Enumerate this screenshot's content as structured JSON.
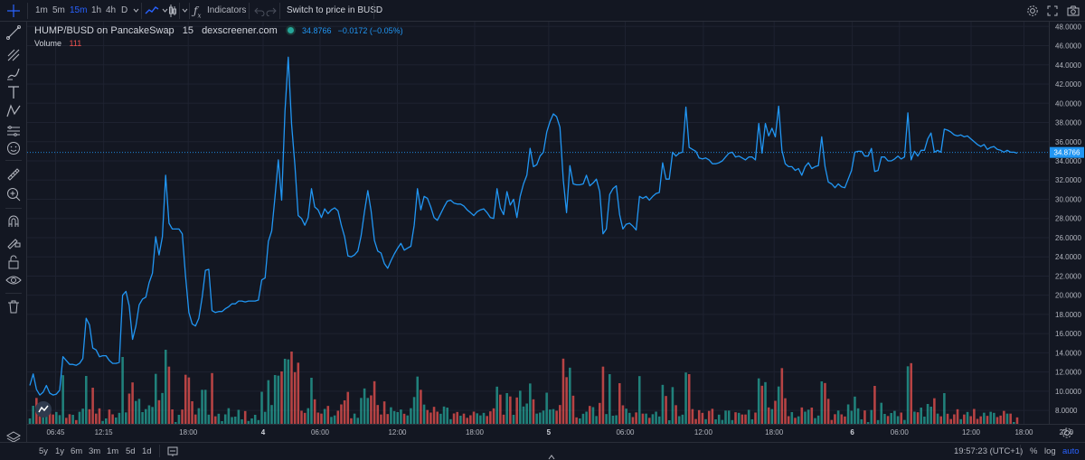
{
  "toolbar": {
    "intervals": [
      {
        "label": "1m",
        "active": false
      },
      {
        "label": "5m",
        "active": false
      },
      {
        "label": "15m",
        "active": true
      },
      {
        "label": "1h",
        "active": false
      },
      {
        "label": "4h",
        "active": false
      },
      {
        "label": "D",
        "active": false
      }
    ],
    "indicators_label": "Indicators",
    "switch_label": "Switch to price in BUSD"
  },
  "legend": {
    "symbol": "HUMP/BUSD on PancakeSwap",
    "interval": "15",
    "source": "dexscreener.com",
    "price": "34.8766",
    "change": "−0.0172 (−0.05%)",
    "volume_label": "Volume",
    "volume_value": "111"
  },
  "colors": {
    "line": "#2196f3",
    "up": "#26a69a",
    "down": "#ef5350",
    "background": "#131722",
    "grid": "#1e2230",
    "price_badge": "#2196f3"
  },
  "bottombar": {
    "ranges": [
      "5y",
      "1y",
      "6m",
      "3m",
      "1m",
      "5d",
      "1d"
    ],
    "time": "19:57:23 (UTC+1)",
    "percent_label": "%",
    "log_label": "log",
    "auto_label": "auto"
  },
  "chart_data": {
    "type": "line",
    "y_ticks": [
      "48.0000",
      "46.0000",
      "44.0000",
      "42.0000",
      "40.0000",
      "38.0000",
      "36.0000",
      "34.0000",
      "32.0000",
      "30.0000",
      "28.0000",
      "26.0000",
      "24.0000",
      "22.0000",
      "20.0000",
      "18.0000",
      "16.0000",
      "14.0000",
      "12.0000",
      "10.0000",
      "8.0000"
    ],
    "ylim": [
      6.6,
      48.5
    ],
    "current_price_label": "34.8766",
    "current_price": 34.8766,
    "x_ticks": [
      {
        "label": "06:45",
        "pos": 0.035
      },
      {
        "label": "12:15",
        "pos": 0.094
      },
      {
        "label": "18:00",
        "pos": 0.198
      },
      {
        "label": "4",
        "pos": 0.29
      },
      {
        "label": "06:00",
        "pos": 0.36
      },
      {
        "label": "12:00",
        "pos": 0.455
      },
      {
        "label": "18:00",
        "pos": 0.55
      },
      {
        "label": "5",
        "pos": 0.641
      },
      {
        "label": "06:00",
        "pos": 0.735
      },
      {
        "label": "12:00",
        "pos": 0.831
      },
      {
        "label": "18:00",
        "pos": 0.918
      },
      {
        "label": "6",
        "pos": 1.014
      },
      {
        "label": "06:00",
        "pos": 1.072
      },
      {
        "label": "12:00",
        "pos": 1.16
      },
      {
        "label": "18:00",
        "pos": 1.225
      },
      {
        "label": "22:0",
        "pos": 1.277
      }
    ],
    "series": [
      {
        "values": [
          10.6,
          11.8,
          10.2,
          9.6,
          9.9,
          10.6,
          9.8,
          9.6,
          9.7,
          10.1,
          13.6,
          13.2,
          12.8,
          12.8,
          12.7,
          12.9,
          13.4,
          17.6,
          16.9,
          14.5,
          14.3,
          13.6,
          13.7,
          13.7,
          13.2,
          12.9,
          12.9,
          13.0,
          20.0,
          20.4,
          18.9,
          15.4,
          16.8,
          19.0,
          19.6,
          19.8,
          21.3,
          22.3,
          26.1,
          24.2,
          26.1,
          32.5,
          27.5,
          26.9,
          26.9,
          26.9,
          26.4,
          22.0,
          18.2,
          17.0,
          16.8,
          17.6,
          19.8,
          22.6,
          22.7,
          18.4,
          18.2,
          18.3,
          18.3,
          18.6,
          18.8,
          19.1,
          19.1,
          19.4,
          19.4,
          19.3,
          19.4,
          19.4,
          19.4,
          19.5,
          21.6,
          21.8,
          25.6,
          26.7,
          30.3,
          34.1,
          29.9,
          39.2,
          44.8,
          37.8,
          33.5,
          28.3,
          28.0,
          27.3,
          28.1,
          31.1,
          29.2,
          28.9,
          28.1,
          29.0,
          28.5,
          28.9,
          29.1,
          28.8,
          27.3,
          26.1,
          24.1,
          24.0,
          24.2,
          24.6,
          26.2,
          28.7,
          30.9,
          28.8,
          25.7,
          24.6,
          24.4,
          23.3,
          22.8,
          23.6,
          24.3,
          24.9,
          25.4,
          24.7,
          24.9,
          25.1,
          27.3,
          31.1,
          28.9,
          30.3,
          30.1,
          29.2,
          28.1,
          27.8,
          28.5,
          29.2,
          29.8,
          29.9,
          29.6,
          29.5,
          29.5,
          29.3,
          28.9,
          28.6,
          28.3,
          28.7,
          28.9,
          29.0,
          28.6,
          28.1,
          28.0,
          31.1,
          29.1,
          28.4,
          30.8,
          29.4,
          30.0,
          28.1,
          30.3,
          31.6,
          32.5,
          35.3,
          33.4,
          33.6,
          34.5,
          34.9,
          37.0,
          38.1,
          38.9,
          38.6,
          37.5,
          32.0,
          28.6,
          33.5,
          31.6,
          31.5,
          31.5,
          31.6,
          32.5,
          31.4,
          31.7,
          32.1,
          30.8,
          26.4,
          26.9,
          30.5,
          31.1,
          31.4,
          28.4,
          26.9,
          27.4,
          27.5,
          27.2,
          26.8,
          30.3,
          30.1,
          30.3,
          29.9,
          30.3,
          30.6,
          30.7,
          33.8,
          32.1,
          32.1,
          34.9,
          34.5,
          34.8,
          34.9,
          39.6,
          35.4,
          35.2,
          35.0,
          34.3,
          34.2,
          34.3,
          34.1,
          33.7,
          33.7,
          33.8,
          34.0,
          34.4,
          34.8,
          34.9,
          34.4,
          34.5,
          34.3,
          34.1,
          34.4,
          34.4,
          34.1,
          37.9,
          34.8,
          37.9,
          36.6,
          37.4,
          36.5,
          39.7,
          35.1,
          33.7,
          33.4,
          33.4,
          33.0,
          33.2,
          32.5,
          33.4,
          33.8,
          33.2,
          33.4,
          33.5,
          36.5,
          33.4,
          31.8,
          31.6,
          31.2,
          31.6,
          31.3,
          31.2,
          32.1,
          33.0,
          34.9,
          35.0,
          35.0,
          34.5,
          34.5,
          35.3,
          32.9,
          33.0,
          34.4,
          34.4,
          34.0,
          34.0,
          34.2,
          34.5,
          34.2,
          34.4,
          39.0,
          34.1,
          35.0,
          34.5,
          35.1,
          35.1,
          36.3,
          36.9,
          34.9,
          35.1,
          34.9,
          37.3,
          37.2,
          37.0,
          36.7,
          36.6,
          36.7,
          36.5,
          36.6,
          36.3,
          36.0,
          35.7,
          35.5,
          35.7,
          35.2,
          35.4,
          35.5,
          35.2,
          35.1,
          34.9,
          35.1,
          34.9,
          34.9,
          34.8
        ]
      }
    ]
  }
}
